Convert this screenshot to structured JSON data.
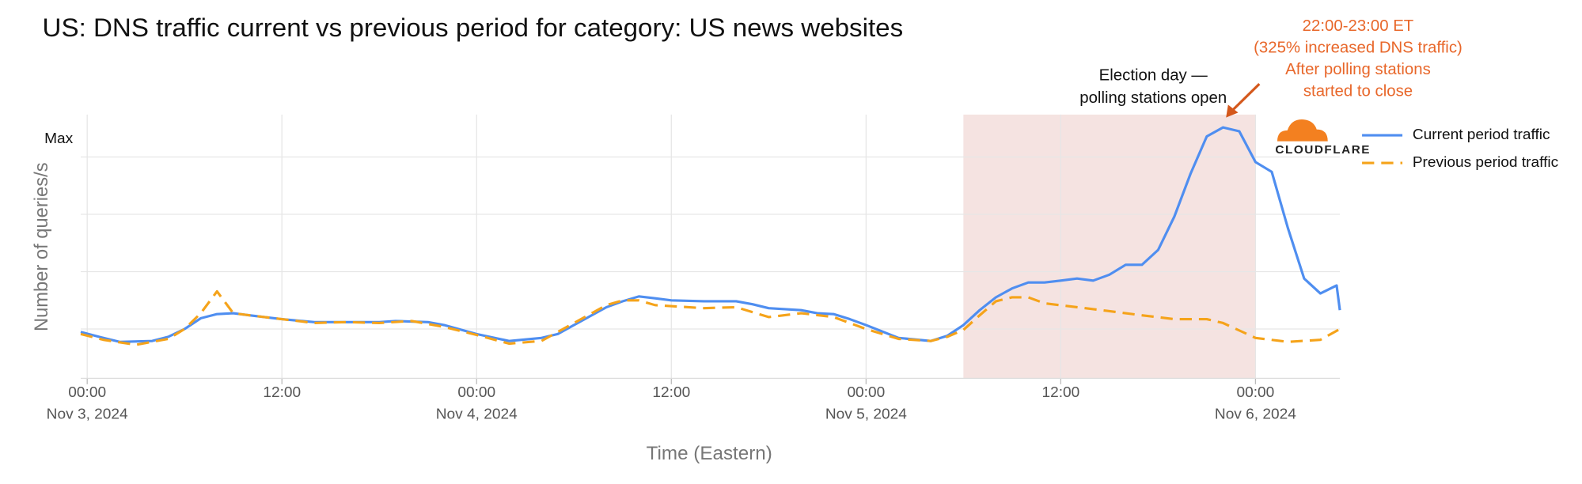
{
  "chart_data": {
    "type": "line",
    "title": "US: DNS traffic current vs previous period for category: US news websites",
    "y_label": "Number of queries/s",
    "x_label": "Time (Eastern)",
    "xlim": [
      -0.4,
      77.2
    ],
    "xticks": [
      {
        "value": 0,
        "label": [
          "00:00",
          "Nov 3, 2024"
        ]
      },
      {
        "value": 12,
        "label": "12:00"
      },
      {
        "value": 24,
        "label": [
          "00:00",
          "Nov 4, 2024"
        ]
      },
      {
        "value": 36,
        "label": "12:00"
      },
      {
        "value": 48,
        "label": [
          "00:00",
          "Nov 5, 2024"
        ]
      },
      {
        "value": 60,
        "label": "12:00"
      },
      {
        "value": 72,
        "label": [
          "00:00",
          "Nov 6, 2024"
        ]
      }
    ],
    "ylim": [
      3.5,
      118.5
    ],
    "yticks": [
      {
        "value": 25,
        "label": null
      },
      {
        "value": 50,
        "label": null
      },
      {
        "value": 75,
        "label": null
      },
      {
        "value": 100,
        "label": "Max"
      }
    ],
    "grid": true,
    "legend": "top-right",
    "logo_text": "CLOUDFLARE",
    "highlight": {
      "x": [
        54,
        72
      ],
      "color": "#f5e3e1",
      "label": [
        "Election day —",
        "polling stations open"
      ]
    },
    "annotation": {
      "x": 70,
      "color": "#e8672a",
      "lines": [
        "22:00-23:00 ET",
        "(325% increased DNS traffic)",
        "After polling stations",
        "started to close"
      ]
    },
    "series": [
      {
        "name": "Current period traffic",
        "color": "#4f8ef0",
        "dash": false,
        "x": [
          -0.4,
          1,
          2,
          4,
          5,
          6,
          7,
          8,
          9,
          10,
          12,
          14,
          16,
          18,
          19,
          21,
          22,
          24,
          26,
          28,
          29,
          30,
          32,
          33,
          34,
          35,
          36,
          38,
          40,
          41,
          42,
          44,
          45,
          46,
          47,
          48,
          50,
          52,
          53,
          54,
          55,
          56,
          57,
          58,
          59,
          60,
          61,
          62,
          63,
          64,
          65,
          66,
          67,
          68,
          69,
          70,
          71,
          72,
          73,
          74,
          75,
          76,
          77,
          77.2
        ],
        "values": [
          23.7,
          21.1,
          19.4,
          19.8,
          21.6,
          25,
          29.7,
          31.5,
          31.9,
          31,
          29.3,
          28,
          28,
          28,
          28.5,
          28,
          26.7,
          22.8,
          19.8,
          21.1,
          22.8,
          26.7,
          34.5,
          37.1,
          39.2,
          38.4,
          37.5,
          37.1,
          37.1,
          35.8,
          34.1,
          33.2,
          31.9,
          31.5,
          29.3,
          26.7,
          21.1,
          19.8,
          22,
          26.7,
          33.2,
          38.8,
          42.7,
          45.3,
          45.3,
          46.1,
          47,
          46.1,
          48.7,
          53,
          53,
          59.5,
          74.1,
          92.7,
          109,
          112.9,
          111.2,
          97.8,
          93.5,
          69,
          47,
          40.5,
          44,
          33.2
        ]
      },
      {
        "name": "Previous period traffic",
        "color": "#f5a31a",
        "dash": true,
        "x": [
          -0.4,
          1,
          3,
          5,
          6,
          7,
          8,
          9,
          10,
          12,
          14,
          16,
          18,
          20,
          22,
          24,
          26,
          28,
          30,
          32,
          33,
          34,
          35,
          38,
          40,
          42,
          44,
          46,
          48,
          50,
          52,
          53,
          54,
          55,
          56,
          57,
          58,
          59,
          61,
          63,
          65,
          67,
          69,
          70,
          72,
          74,
          76,
          77.2
        ],
        "values": [
          22.8,
          20.3,
          18.1,
          20.7,
          25,
          31.9,
          41.4,
          31.9,
          31,
          29.3,
          27.6,
          28,
          27.6,
          28.5,
          25.9,
          22.4,
          18.6,
          19.8,
          27.6,
          35.4,
          37.5,
          37.5,
          35.4,
          34.1,
          34.5,
          30.2,
          31.9,
          30.2,
          25,
          20.7,
          19.8,
          21.6,
          24.6,
          31,
          37.1,
          38.8,
          38.8,
          36.2,
          34.5,
          32.8,
          31,
          29.3,
          29.3,
          27.6,
          21.1,
          19.4,
          20.3,
          25
        ]
      }
    ]
  }
}
